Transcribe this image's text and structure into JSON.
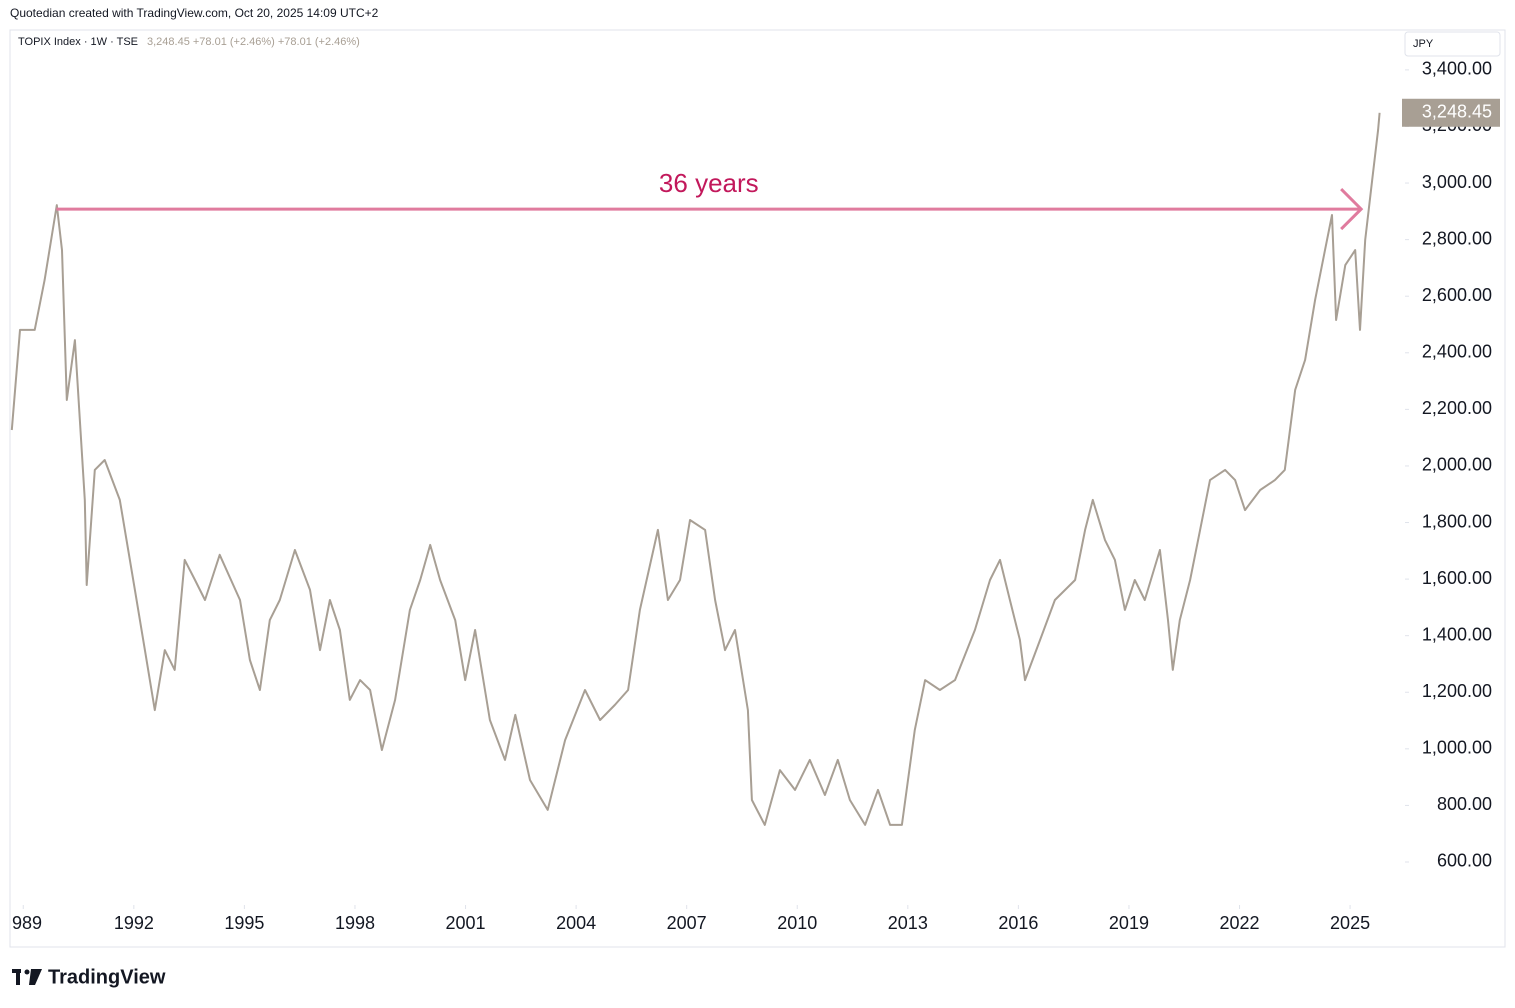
{
  "chart_data": {
    "type": "line",
    "credit": "Quotedian created with TradingView.com, Oct 20, 2025 14:09 UTC+2",
    "title": "TOPIX Index · 1W · TSE",
    "quote": "3,248.45  +78.01 (+2.46%)  +78.01 (+2.46%)",
    "currency": "JPY",
    "logo": "TradingView",
    "price_label": {
      "value": 3248.45,
      "label": "3,248.45"
    },
    "annotation": {
      "text": "36 years",
      "x": [
        1989.9,
        2025.3
      ],
      "y": 2908
    },
    "xlim": [
      1988.64,
      2026.49
    ],
    "xticks": [
      {
        "value": 1989,
        "label": "989"
      },
      1992,
      1995,
      1998,
      2001,
      2004,
      2007,
      2010,
      2013,
      2016,
      2019,
      2022,
      2025
    ],
    "ylim": [
      448,
      3541
    ],
    "yticks": [
      {
        "value": 600,
        "label": "600.00"
      },
      {
        "value": 800,
        "label": "800.00"
      },
      {
        "value": 1000,
        "label": "1,000.00"
      },
      {
        "value": 1200,
        "label": "1,200.00"
      },
      {
        "value": 1400,
        "label": "1,400.00"
      },
      {
        "value": 1600,
        "label": "1,600.00"
      },
      {
        "value": 1800,
        "label": "1,800.00"
      },
      {
        "value": 2000,
        "label": "2,000.00"
      },
      {
        "value": 2200,
        "label": "2,200.00"
      },
      {
        "value": 2400,
        "label": "2,400.00"
      },
      {
        "value": 2600,
        "label": "2,600.00"
      },
      {
        "value": 2800,
        "label": "2,800.00"
      },
      {
        "value": 3000,
        "label": "3,000.00"
      },
      {
        "value": 3200,
        "label": "3,200.00"
      },
      {
        "value": 3400,
        "label": "3,400.00"
      }
    ],
    "color": "#a89f94",
    "x": [
      1988.69,
      1988.91,
      1989.31,
      1989.58,
      1989.91,
      1990.05,
      1990.18,
      1990.4,
      1990.67,
      1990.72,
      1990.94,
      1991.21,
      1991.62,
      1992.03,
      1992.3,
      1992.57,
      1992.84,
      1993.11,
      1993.38,
      1993.66,
      1993.93,
      1994.33,
      1994.88,
      1995.15,
      1995.42,
      1995.69,
      1995.96,
      1996.37,
      1996.78,
      1997.05,
      1997.32,
      1997.59,
      1997.86,
      1998.14,
      1998.41,
      1998.73,
      1999.09,
      1999.49,
      1999.77,
      2000.04,
      2000.31,
      2000.72,
      2000.99,
      2001.26,
      2001.66,
      2002.07,
      2002.35,
      2002.75,
      2003.23,
      2003.7,
      2004.24,
      2004.65,
      2005.05,
      2005.41,
      2005.73,
      2006.22,
      2006.49,
      2006.82,
      2007.09,
      2007.5,
      2007.77,
      2008.04,
      2008.31,
      2008.66,
      2008.77,
      2009.12,
      2009.53,
      2009.94,
      2010.34,
      2010.75,
      2011.1,
      2011.43,
      2011.84,
      2012.19,
      2012.52,
      2012.84,
      2013.19,
      2013.47,
      2013.87,
      2014.28,
      2014.82,
      2015.23,
      2015.5,
      2015.77,
      2016.04,
      2016.18,
      2016.59,
      2016.99,
      2017.54,
      2017.81,
      2018.02,
      2018.35,
      2018.62,
      2018.89,
      2019.16,
      2019.43,
      2019.84,
      2020.06,
      2020.19,
      2020.38,
      2020.66,
      2020.93,
      2021.2,
      2021.61,
      2021.88,
      2022.15,
      2022.56,
      2022.96,
      2023.23,
      2023.51,
      2023.78,
      2024.05,
      2024.32,
      2024.51,
      2024.62,
      2024.87,
      2025.14,
      2025.27,
      2025.41,
      2025.6,
      2025.76,
      2025.8
    ],
    "values": [
      2127,
      2481,
      2481,
      2657,
      2922,
      2763,
      2233,
      2445,
      1880,
      1579,
      1986,
      2021,
      1880,
      1562,
      1349,
      1137,
      1349,
      1279,
      1668,
      1597,
      1526,
      1686,
      1526,
      1314,
      1208,
      1455,
      1526,
      1703,
      1562,
      1349,
      1526,
      1420,
      1173,
      1243,
      1208,
      996,
      1173,
      1491,
      1597,
      1721,
      1597,
      1455,
      1243,
      1420,
      1102,
      961,
      1120,
      890,
      784,
      1031,
      1208,
      1102,
      1155,
      1208,
      1491,
      1774,
      1526,
      1597,
      1809,
      1774,
      1526,
      1349,
      1420,
      1137,
      819,
      731,
      925,
      855,
      961,
      837,
      961,
      819,
      731,
      855,
      731,
      731,
      1067,
      1243,
      1208,
      1243,
      1420,
      1597,
      1668,
      1526,
      1385,
      1243,
      1385,
      1526,
      1597,
      1774,
      1880,
      1738,
      1668,
      1491,
      1597,
      1526,
      1703,
      1455,
      1279,
      1455,
      1597,
      1774,
      1950,
      1986,
      1950,
      1844,
      1915,
      1950,
      1986,
      2269,
      2375,
      2587,
      2763,
      2887,
      2516,
      2710,
      2763,
      2481,
      2799,
      3011,
      3188,
      3248.45
    ]
  }
}
